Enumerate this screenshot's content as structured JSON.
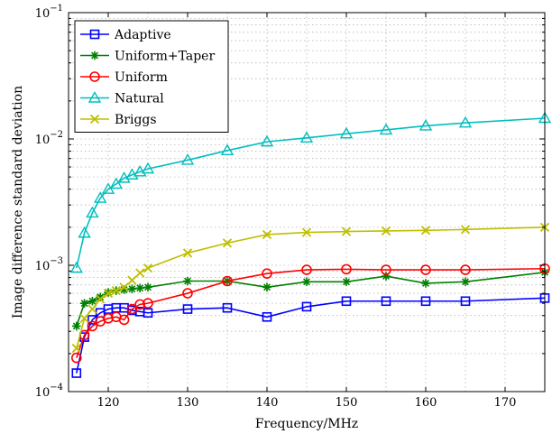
{
  "chart_data": {
    "type": "line",
    "title": "",
    "xlabel": "Frequency/MHz",
    "ylabel": "Image difference standard deviation",
    "xlim": [
      115,
      175
    ],
    "ylim": [
      0.0001,
      0.1
    ],
    "yscale": "log",
    "grid": true,
    "legend_position": "top-left",
    "x_ticks": [
      120,
      130,
      140,
      150,
      160,
      170
    ],
    "x_tick_labels": [
      "120",
      "130",
      "140",
      "150",
      "160",
      "170"
    ],
    "y_ticks": [
      0.0001,
      0.001,
      0.01,
      0.1
    ],
    "y_tick_labels": [
      {
        "base": "10",
        "exp": "−4"
      },
      {
        "base": "10",
        "exp": "−3"
      },
      {
        "base": "10",
        "exp": "−2"
      },
      {
        "base": "10",
        "exp": "−1"
      }
    ],
    "series": [
      {
        "name": "Adaptive",
        "color": "#0000ff",
        "marker": "square",
        "x": [
          116,
          117,
          118,
          119,
          120,
          121,
          122,
          123,
          124,
          125,
          130,
          135,
          140,
          145,
          150,
          155,
          160,
          165,
          175
        ],
        "y": [
          0.00014,
          0.00027,
          0.00037,
          0.00042,
          0.00045,
          0.00046,
          0.00046,
          0.00044,
          0.00043,
          0.00042,
          0.00045,
          0.00046,
          0.00039,
          0.00047,
          0.00052,
          0.00052,
          0.00052,
          0.00052,
          0.00055
        ]
      },
      {
        "name": "Uniform+Taper",
        "color": "#008000",
        "marker": "asterisk",
        "x": [
          116,
          117,
          118,
          119,
          120,
          121,
          122,
          123,
          124,
          125,
          130,
          135,
          140,
          145,
          150,
          155,
          160,
          165,
          175
        ],
        "y": [
          0.00033,
          0.0005,
          0.00052,
          0.00056,
          0.00061,
          0.00063,
          0.00064,
          0.00065,
          0.00066,
          0.00067,
          0.00075,
          0.00075,
          0.00067,
          0.00074,
          0.00074,
          0.00082,
          0.00072,
          0.00074,
          0.00088
        ]
      },
      {
        "name": "Uniform",
        "color": "#ff0000",
        "marker": "circle",
        "x": [
          116,
          117,
          118,
          119,
          120,
          121,
          122,
          123,
          124,
          125,
          130,
          135,
          140,
          145,
          150,
          155,
          160,
          165,
          175
        ],
        "y": [
          0.000185,
          0.00028,
          0.00033,
          0.00036,
          0.00038,
          0.00039,
          0.00037,
          0.00045,
          0.00049,
          0.0005,
          0.0006,
          0.00075,
          0.00086,
          0.00092,
          0.00093,
          0.00092,
          0.00092,
          0.00092,
          0.00094
        ]
      },
      {
        "name": "Natural",
        "color": "#00bfbf",
        "marker": "triangle",
        "x": [
          116,
          117,
          118,
          119,
          120,
          121,
          122,
          123,
          124,
          125,
          130,
          135,
          140,
          145,
          150,
          155,
          160,
          165,
          175
        ],
        "y": [
          0.00095,
          0.0018,
          0.0026,
          0.0034,
          0.004,
          0.0044,
          0.0049,
          0.0052,
          0.0055,
          0.0058,
          0.0068,
          0.0081,
          0.0095,
          0.0102,
          0.011,
          0.0118,
          0.0127,
          0.0134,
          0.0146
        ]
      },
      {
        "name": "Briggs",
        "color": "#bfbf00",
        "marker": "x",
        "x": [
          116,
          117,
          118,
          119,
          120,
          121,
          122,
          123,
          124,
          125,
          130,
          135,
          140,
          145,
          150,
          155,
          160,
          165,
          175
        ],
        "y": [
          0.00022,
          0.00038,
          0.00045,
          0.00054,
          0.0006,
          0.00063,
          0.00067,
          0.00076,
          0.00087,
          0.00095,
          0.00125,
          0.0015,
          0.00175,
          0.00182,
          0.00185,
          0.00187,
          0.00189,
          0.00192,
          0.002
        ]
      }
    ]
  }
}
